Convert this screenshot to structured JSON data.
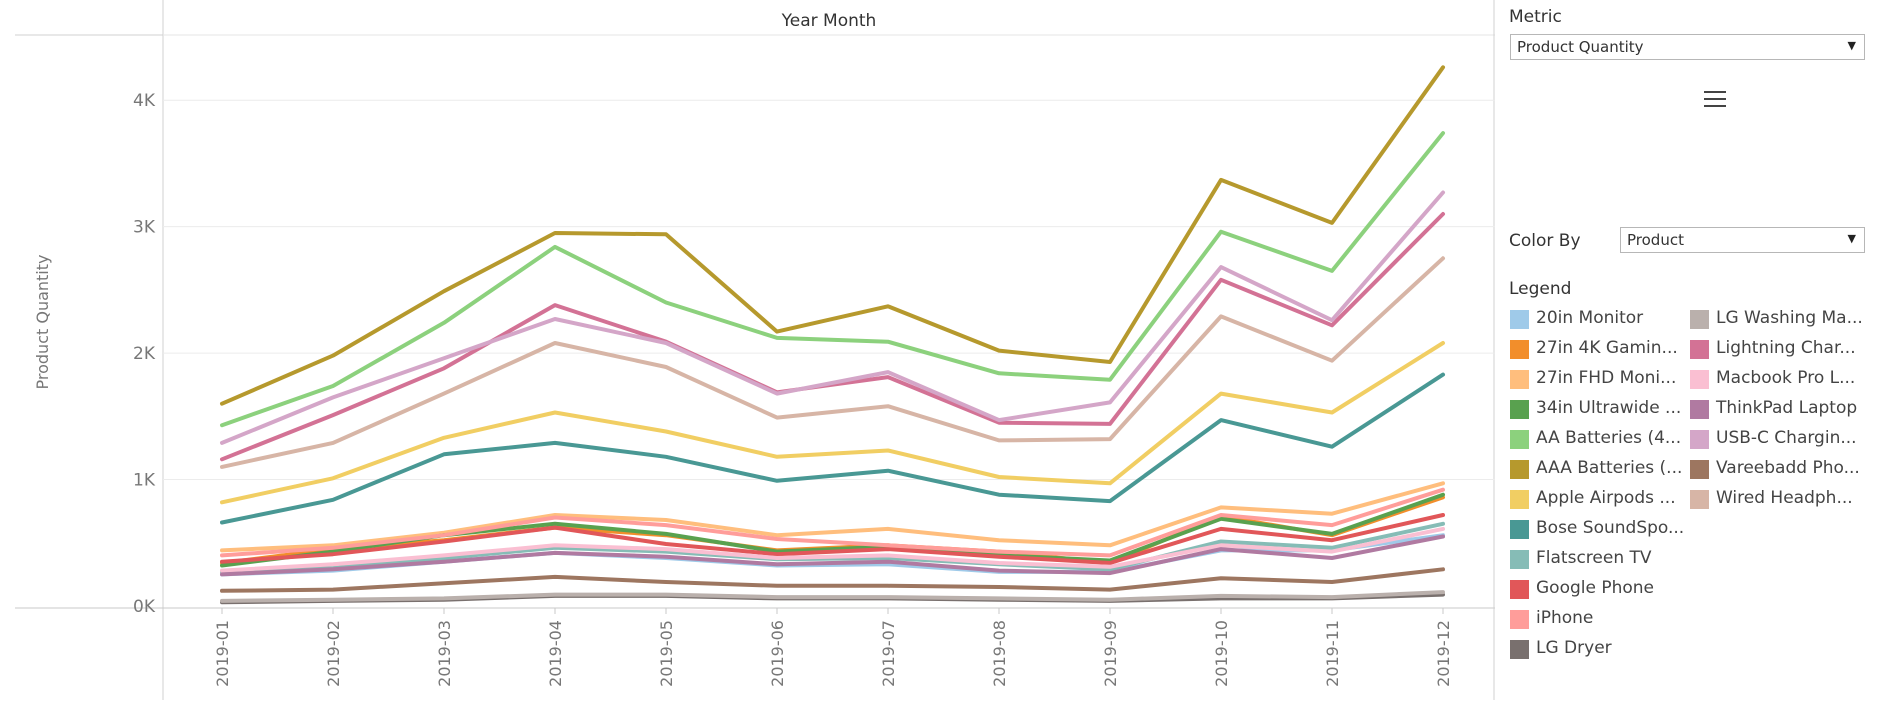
{
  "chart_data": {
    "type": "line",
    "title": "Year Month",
    "xlabel": "",
    "ylabel": "Product Quantity",
    "ylim": [
      0,
      4500
    ],
    "yticks": [
      0,
      1000,
      2000,
      3000,
      4000
    ],
    "ytick_labels": [
      "0K",
      "1K",
      "2K",
      "3K",
      "4K"
    ],
    "x": [
      "2019-01",
      "2019-02",
      "2019-03",
      "2019-04",
      "2019-05",
      "2019-06",
      "2019-07",
      "2019-08",
      "2019-09",
      "2019-10",
      "2019-11",
      "2019-12"
    ],
    "grid": true,
    "legend_position": "right",
    "series": [
      {
        "name": "20in Monitor",
        "color": "#9fcae9",
        "values": [
          250,
          280,
          350,
          420,
          380,
          320,
          330,
          270,
          270,
          440,
          440,
          560
        ]
      },
      {
        "name": "27in 4K Gaming Monitor",
        "color": "#f28e2b",
        "values": [
          340,
          450,
          520,
          620,
          560,
          440,
          480,
          430,
          340,
          710,
          560,
          860
        ]
      },
      {
        "name": "27in FHD Monitor",
        "color": "#ffbe7d",
        "values": [
          440,
          480,
          580,
          720,
          680,
          560,
          610,
          520,
          480,
          780,
          730,
          970
        ]
      },
      {
        "name": "34in Ultrawide Monitor",
        "color": "#59a14f",
        "values": [
          320,
          430,
          560,
          650,
          570,
          430,
          470,
          400,
          360,
          690,
          570,
          880
        ]
      },
      {
        "name": "AA Batteries (4-pack)",
        "color": "#8cd17d",
        "values": [
          1430,
          1740,
          2240,
          2840,
          2400,
          2120,
          2090,
          1840,
          1790,
          2960,
          2650,
          3740
        ]
      },
      {
        "name": "AAA Batteries (4-pack)",
        "color": "#b6992d",
        "values": [
          1600,
          1980,
          2490,
          2950,
          2940,
          2170,
          2370,
          2020,
          1930,
          3370,
          3030,
          4260
        ]
      },
      {
        "name": "Apple Airpods Headphones",
        "color": "#f1ce63",
        "values": [
          820,
          1010,
          1330,
          1530,
          1380,
          1180,
          1230,
          1020,
          970,
          1680,
          1530,
          2080
        ]
      },
      {
        "name": "Bose SoundSport Headphones",
        "color": "#499894",
        "values": [
          660,
          840,
          1200,
          1290,
          1180,
          990,
          1070,
          880,
          830,
          1470,
          1260,
          1830
        ]
      },
      {
        "name": "Flatscreen TV",
        "color": "#86bcb6",
        "values": [
          270,
          300,
          380,
          460,
          430,
          370,
          380,
          330,
          290,
          510,
          460,
          650
        ]
      },
      {
        "name": "Google Phone",
        "color": "#e15759",
        "values": [
          350,
          410,
          510,
          620,
          490,
          410,
          450,
          390,
          340,
          610,
          520,
          720
        ]
      },
      {
        "name": "iPhone",
        "color": "#ff9d9a",
        "values": [
          400,
          460,
          560,
          700,
          640,
          530,
          480,
          430,
          400,
          720,
          640,
          920
        ]
      },
      {
        "name": "LG Dryer",
        "color": "#79706e",
        "values": [
          30,
          40,
          50,
          80,
          80,
          60,
          60,
          50,
          40,
          60,
          60,
          90
        ]
      },
      {
        "name": "LG Washing Machine",
        "color": "#bab0ac",
        "values": [
          40,
          50,
          60,
          90,
          90,
          70,
          70,
          60,
          50,
          80,
          70,
          110
        ]
      },
      {
        "name": "Lightning Charging Cable",
        "color": "#d37295",
        "values": [
          1160,
          1510,
          1880,
          2380,
          2090,
          1690,
          1810,
          1450,
          1440,
          2580,
          2220,
          3100
        ]
      },
      {
        "name": "Macbook Pro Laptop",
        "color": "#fabfd2",
        "values": [
          280,
          330,
          400,
          480,
          450,
          380,
          400,
          340,
          310,
          480,
          430,
          610
        ]
      },
      {
        "name": "ThinkPad Laptop",
        "color": "#b07aa1",
        "values": [
          250,
          290,
          350,
          420,
          390,
          330,
          350,
          280,
          260,
          450,
          380,
          550
        ]
      },
      {
        "name": "USB-C Charging Cable",
        "color": "#d4a6c8",
        "values": [
          1290,
          1650,
          1960,
          2270,
          2080,
          1680,
          1850,
          1470,
          1610,
          2680,
          2260,
          3270
        ]
      },
      {
        "name": "Vareebadd Phone",
        "color": "#9d7660",
        "values": [
          120,
          130,
          180,
          230,
          190,
          160,
          160,
          150,
          130,
          220,
          190,
          290
        ]
      },
      {
        "name": "Wired Headphones",
        "color": "#d7b5a6",
        "values": [
          1100,
          1290,
          1680,
          2080,
          1890,
          1490,
          1580,
          1310,
          1320,
          2290,
          1940,
          2750
        ]
      }
    ]
  },
  "controls": {
    "metric_label": "Metric",
    "metric_value": "Product Quantity",
    "color_by_label": "Color By",
    "color_by_value": "Product",
    "legend_label": "Legend",
    "menu_icon": "hamburger-menu-icon",
    "dropdown_icon": "caret-down-icon"
  },
  "legend_items": [
    {
      "text": "20in Monitor",
      "color": "#9fcae9"
    },
    {
      "text": "27in 4K Gamin...",
      "color": "#f28e2b"
    },
    {
      "text": "27in FHD Moni...",
      "color": "#ffbe7d"
    },
    {
      "text": "34in Ultrawide ...",
      "color": "#59a14f"
    },
    {
      "text": "AA Batteries (4...",
      "color": "#8cd17d"
    },
    {
      "text": "AAA Batteries (...",
      "color": "#b6992d"
    },
    {
      "text": "Apple Airpods ...",
      "color": "#f1ce63"
    },
    {
      "text": "Bose SoundSpo...",
      "color": "#499894"
    },
    {
      "text": "Flatscreen TV",
      "color": "#86bcb6"
    },
    {
      "text": "Google Phone",
      "color": "#e15759"
    },
    {
      "text": "iPhone",
      "color": "#ff9d9a"
    },
    {
      "text": "LG Dryer",
      "color": "#79706e"
    },
    {
      "text": "LG Washing Ma...",
      "color": "#bab0ac"
    },
    {
      "text": "Lightning Char...",
      "color": "#d37295"
    },
    {
      "text": "Macbook Pro L...",
      "color": "#fabfd2"
    },
    {
      "text": "ThinkPad Laptop",
      "color": "#b07aa1"
    },
    {
      "text": "USB-C Chargin...",
      "color": "#d4a6c8"
    },
    {
      "text": "Vareebadd Pho...",
      "color": "#9d7660"
    },
    {
      "text": "Wired Headph...",
      "color": "#d7b5a6"
    }
  ]
}
